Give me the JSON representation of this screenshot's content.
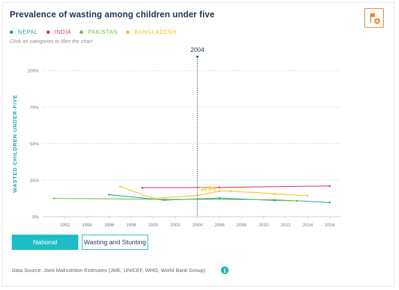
{
  "header": {
    "title": "Prevalence of wasting among children under five"
  },
  "hint": "Click on categories to filter the chart",
  "buttons": {
    "national": "National",
    "wasting_stunting": "Wasting and Stunting"
  },
  "source": "Data Source: Joint Malnutrition Estimates (JME, UNICEF, WHO, World Bank Group)",
  "icons": {
    "flag": "flag-add-icon",
    "info": "info-icon"
  },
  "colors": {
    "nepal": "#1ba3a6",
    "india": "#e8344e",
    "pakistan": "#6cbd45",
    "bangladesh": "#f5c018",
    "accent": "#1ebdc6",
    "flag": "#e2832c"
  },
  "chart_data": {
    "type": "line",
    "title": "Prevalence of wasting among children under five",
    "ylabel": "WASTED CHILDREN UNDER-FIVE",
    "xlabel": "",
    "xlim": [
      1990,
      2017
    ],
    "ylim": [
      0,
      100
    ],
    "x_ticks": [
      "1992",
      "1994",
      "1996",
      "1998",
      "2000",
      "2002",
      "2004",
      "2006",
      "2008",
      "2010",
      "2012",
      "2014",
      "2016"
    ],
    "y_ticks": [
      "0%",
      "25%",
      "50%",
      "75%",
      "100%"
    ],
    "grid": true,
    "legend_position": "top-left",
    "hover_year": "2004",
    "hover_label": "14.5%",
    "series": [
      {
        "name": "NEPAL",
        "color": "#1ba3a6",
        "x": [
          1996,
          2001,
          2006,
          2011,
          2013,
          2016
        ],
        "y": [
          15,
          11.3,
          12.7,
          11.1,
          10.9,
          9.7
        ]
      },
      {
        "name": "INDIA",
        "color": "#e8344e",
        "x": [
          1999,
          2006,
          2016
        ],
        "y": [
          19.8,
          20.0,
          21.0
        ]
      },
      {
        "name": "PAKISTAN",
        "color": "#6cbd45",
        "x": [
          1991,
          2001,
          2004,
          2011,
          2013
        ],
        "y": [
          12.5,
          11.8,
          11.9,
          11.6,
          10.8
        ]
      },
      {
        "name": "BANGLADESH",
        "color": "#f5c018",
        "x": [
          1997,
          2000,
          2004,
          2006,
          2007,
          2011,
          2014
        ],
        "y": [
          20.6,
          12.5,
          14.5,
          17.5,
          17.5,
          15.6,
          14.3
        ]
      }
    ]
  }
}
